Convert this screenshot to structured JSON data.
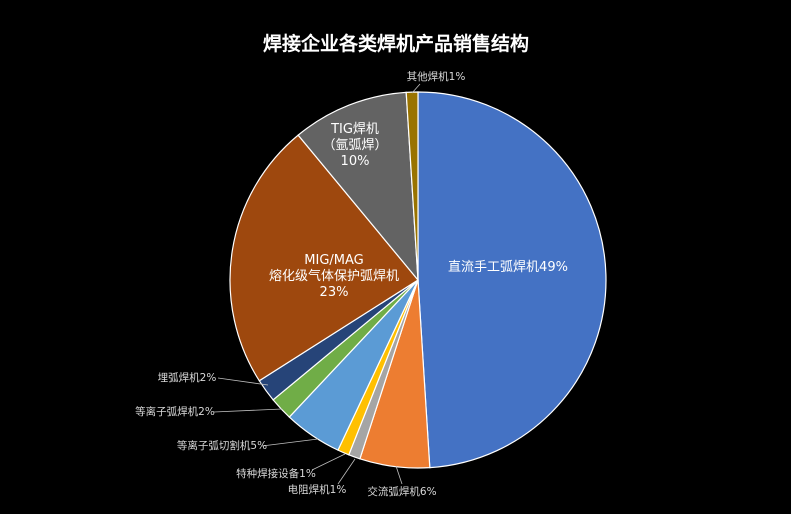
{
  "chart_data": {
    "type": "pie",
    "title": "焊接企业各类焊机产品销售结构",
    "slices": [
      {
        "label": "直流手工弧焊机49%",
        "value": 49,
        "color": "#4472c4",
        "label_lines": [
          "直流手工弧焊机49%"
        ]
      },
      {
        "label": "交流弧焊机6%",
        "value": 6,
        "color": "#ed7d31",
        "label_lines": [
          "交流弧焊机6%"
        ]
      },
      {
        "label": "电阻焊机1%",
        "value": 1,
        "color": "#a5a5a5",
        "label_lines": [
          "电阻焊机1%"
        ]
      },
      {
        "label": "特种焊接设备1%",
        "value": 1,
        "color": "#ffc000",
        "label_lines": [
          "特种焊接设备1%"
        ]
      },
      {
        "label": "等离子弧切割机5%",
        "value": 5,
        "color": "#5b9bd5",
        "label_lines": [
          "等离子弧切割机5%"
        ]
      },
      {
        "label": "等离子弧焊机2%",
        "value": 2,
        "color": "#70ad47",
        "label_lines": [
          "等离子弧焊机2%"
        ]
      },
      {
        "label": "埋弧焊机2%",
        "value": 2,
        "color": "#264478",
        "label_lines": [
          "埋弧焊机2%"
        ]
      },
      {
        "label": "MIG/MAG 熔化级气体保护弧焊机 23%",
        "value": 23,
        "color": "#9e480e",
        "label_lines": [
          "MIG/MAG",
          "熔化级气体保护弧焊机",
          "23%"
        ]
      },
      {
        "label": "TIG焊机 （氩弧焊） 10%",
        "value": 10,
        "color": "#636363",
        "label_lines": [
          "TIG焊机",
          "（氩弧焊）",
          "10%"
        ]
      },
      {
        "label": "其他焊机1%",
        "value": 1,
        "color": "#997300",
        "label_lines": [
          "其他焊机1%"
        ]
      }
    ],
    "start_angle_deg": 0,
    "direction": "clockwise",
    "legend": "none"
  }
}
